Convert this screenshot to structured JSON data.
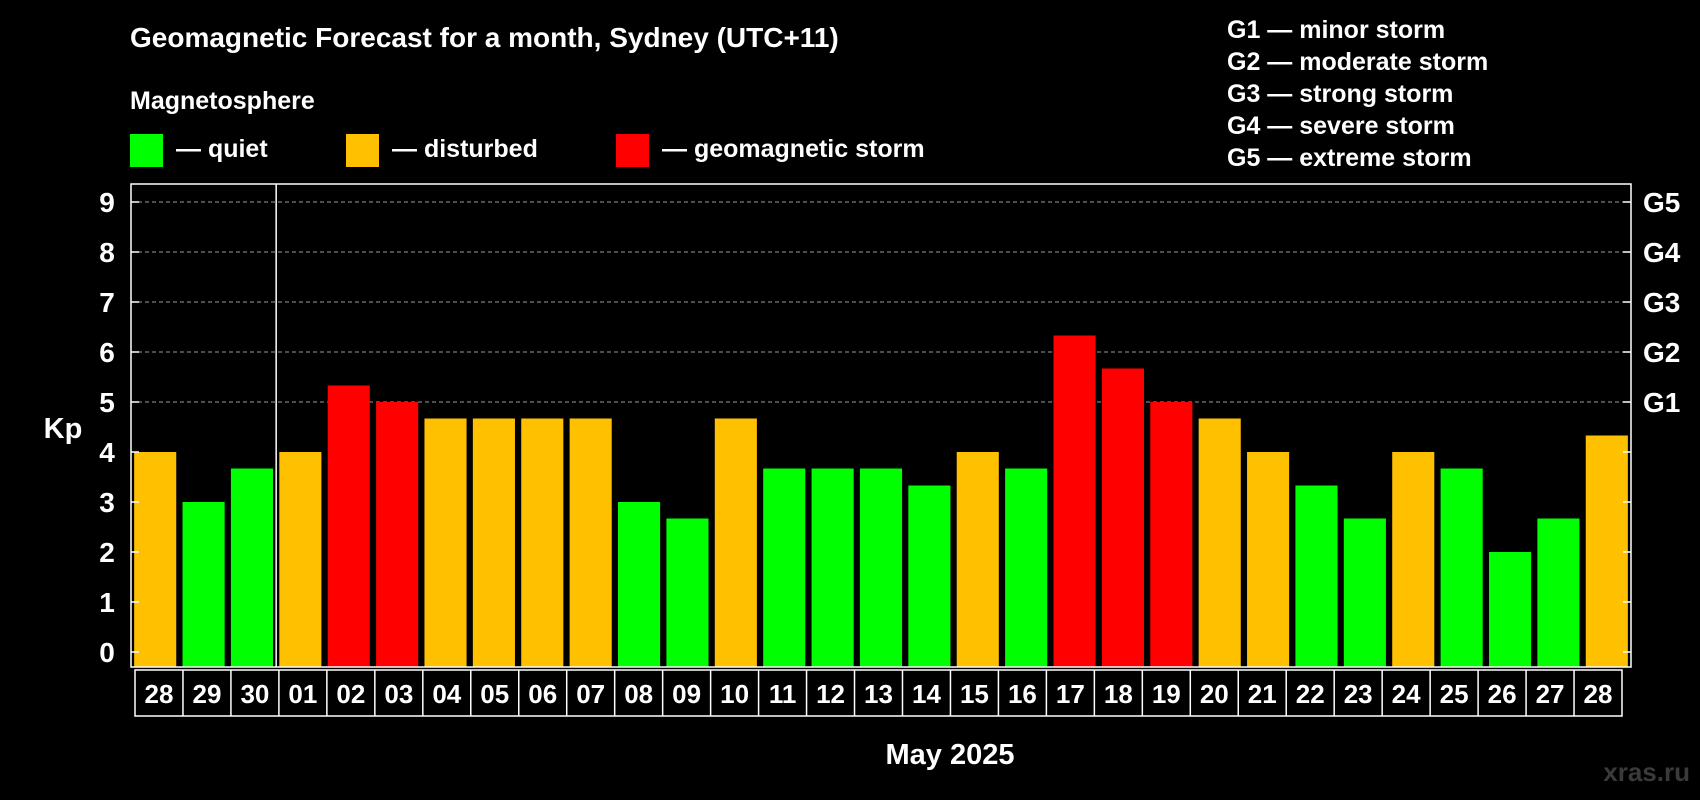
{
  "chart_data": {
    "type": "bar",
    "title": "Geomagnetic Forecast for a month, Sydney (UTC+11)",
    "legend_title": "Magnetosphere",
    "legend": [
      {
        "key": "quiet",
        "label": "— quiet",
        "color": "#00ff00"
      },
      {
        "key": "disturbed",
        "label": "— disturbed",
        "color": "#ffc000"
      },
      {
        "key": "storm",
        "label": "— geomagnetic storm",
        "color": "#ff0000"
      }
    ],
    "storm_scale": [
      "G1 — minor storm",
      "G2 — moderate storm",
      "G3 — strong storm",
      "G4 — severe storm",
      "G5 — extreme storm"
    ],
    "ylabel": "Kp",
    "ylim": [
      0,
      9
    ],
    "yticks": [
      "0",
      "1",
      "2",
      "3",
      "4",
      "5",
      "6",
      "7",
      "8",
      "9"
    ],
    "right_ticks": [
      {
        "value": 5,
        "label": "G1"
      },
      {
        "value": 6,
        "label": "G2"
      },
      {
        "value": 7,
        "label": "G3"
      },
      {
        "value": 8,
        "label": "G4"
      },
      {
        "value": 9,
        "label": "G5"
      }
    ],
    "xlabel": "May 2025",
    "month_divider_after_index": 2,
    "categories": [
      "28",
      "29",
      "30",
      "01",
      "02",
      "03",
      "04",
      "05",
      "06",
      "07",
      "08",
      "09",
      "10",
      "11",
      "12",
      "13",
      "14",
      "15",
      "16",
      "17",
      "18",
      "19",
      "20",
      "21",
      "22",
      "23",
      "24",
      "25",
      "26",
      "27",
      "28"
    ],
    "values": [
      4,
      3,
      3.67,
      4,
      5.33,
      5,
      4.67,
      4.67,
      4.67,
      4.67,
      3,
      2.67,
      4.67,
      3.67,
      3.67,
      3.67,
      3.33,
      4,
      3.67,
      6.33,
      5.67,
      5,
      4.67,
      4,
      3.33,
      2.67,
      4,
      3.67,
      2,
      2.67,
      4.33
    ],
    "levels": [
      "disturbed",
      "quiet",
      "quiet",
      "disturbed",
      "storm",
      "storm",
      "disturbed",
      "disturbed",
      "disturbed",
      "disturbed",
      "quiet",
      "quiet",
      "disturbed",
      "quiet",
      "quiet",
      "quiet",
      "quiet",
      "disturbed",
      "quiet",
      "storm",
      "storm",
      "storm",
      "disturbed",
      "disturbed",
      "quiet",
      "quiet",
      "disturbed",
      "quiet",
      "quiet",
      "quiet",
      "disturbed"
    ],
    "grid": true,
    "gridlines_at": [
      5,
      6,
      7,
      8,
      9
    ]
  },
  "watermark": "xras.ru"
}
